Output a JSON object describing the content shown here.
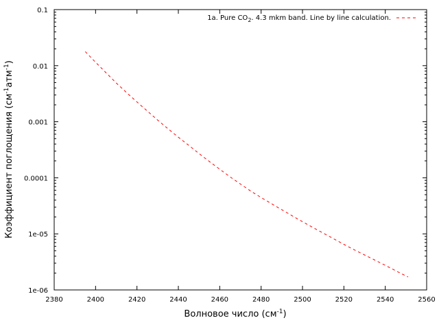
{
  "chart_data": {
    "type": "line",
    "title": "",
    "xlabel": {
      "text": "Волновое число (см",
      "sup": "-1",
      "close": ")"
    },
    "ylabel": {
      "text_a": "Коэффициент поглощения (см",
      "sup_a": "-1",
      "text_b": "атм",
      "sup_b": "-1",
      "close": ")"
    },
    "xlim": [
      2380,
      2560
    ],
    "ylim": [
      1e-06,
      0.1
    ],
    "yscale": "log",
    "grid": false,
    "legend_position": "top-right",
    "x_ticks": [
      {
        "value": 2380,
        "label": "2380"
      },
      {
        "value": 2400,
        "label": "2400"
      },
      {
        "value": 2420,
        "label": "2420"
      },
      {
        "value": 2440,
        "label": "2440"
      },
      {
        "value": 2460,
        "label": "2460"
      },
      {
        "value": 2480,
        "label": "2480"
      },
      {
        "value": 2500,
        "label": "2500"
      },
      {
        "value": 2520,
        "label": "2520"
      },
      {
        "value": 2540,
        "label": "2540"
      },
      {
        "value": 2560,
        "label": "2560"
      }
    ],
    "y_ticks": [
      {
        "value": 0.1,
        "label": "0.1"
      },
      {
        "value": 0.01,
        "label": "0.01"
      },
      {
        "value": 0.001,
        "label": "0.001"
      },
      {
        "value": 0.0001,
        "label": "0.0001"
      },
      {
        "value": 1e-05,
        "label": "1e-05"
      },
      {
        "value": 1e-06,
        "label": "1e-06"
      }
    ],
    "series": [
      {
        "name": {
          "part1": "1a. Pure CO",
          "sub": "2",
          "part2": ". 4.3 mkm band. Line by line calculation."
        },
        "color": "#ff0000",
        "style": "dashed",
        "x": [
          2395,
          2400,
          2405,
          2410,
          2415,
          2420,
          2425,
          2430,
          2435,
          2440,
          2445,
          2450,
          2455,
          2460,
          2465,
          2470,
          2475,
          2480,
          2485,
          2490,
          2495,
          2500,
          2505,
          2510,
          2515,
          2520,
          2525,
          2530,
          2535,
          2540,
          2545,
          2551
        ],
        "y": [
          0.0178,
          0.0115,
          0.0075,
          0.0049,
          0.0033,
          0.00225,
          0.00155,
          0.00107,
          0.00075,
          0.00053,
          0.00038,
          0.00027,
          0.000195,
          0.000142,
          0.000104,
          7.75e-05,
          5.8e-05,
          4.45e-05,
          3.45e-05,
          2.7e-05,
          2.1e-05,
          1.65e-05,
          1.3e-05,
          1.03e-05,
          8.2e-06,
          6.5e-06,
          5.2e-06,
          4.2e-06,
          3.4e-06,
          2.75e-06,
          2.2e-06,
          1.7e-06
        ]
      }
    ]
  }
}
